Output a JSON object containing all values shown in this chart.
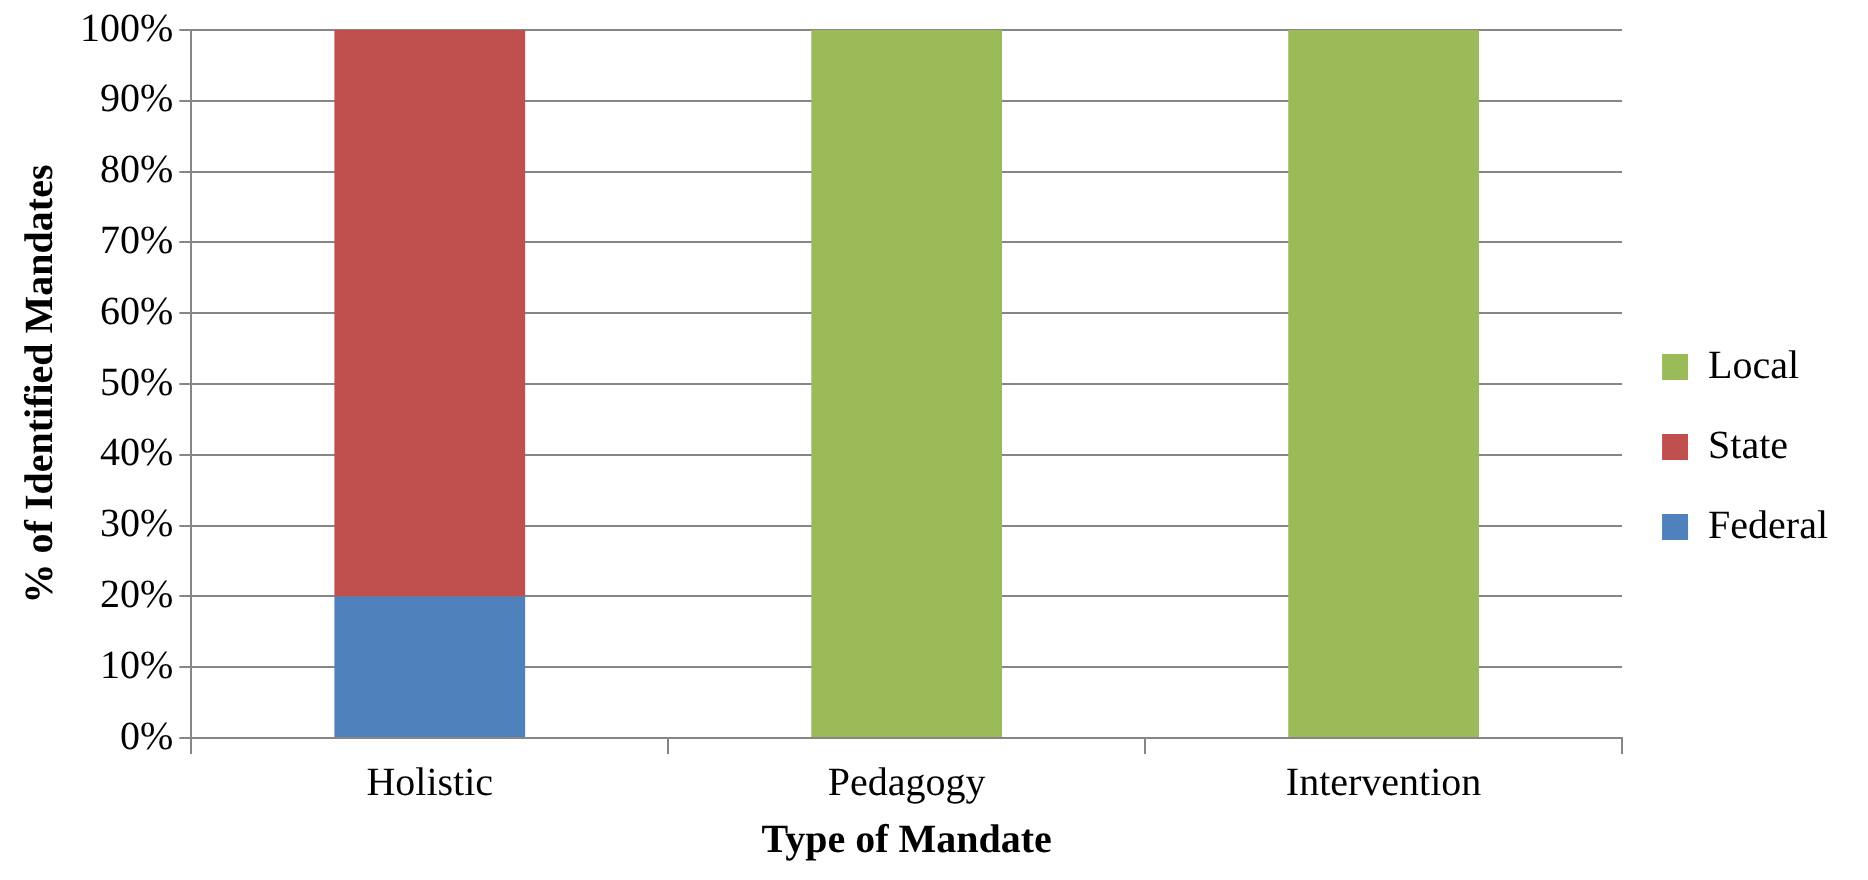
{
  "chart_data": {
    "type": "bar",
    "stacked": true,
    "xlabel": "Type of Mandate",
    "ylabel": "% of Identified Mandates",
    "categories": [
      "Holistic",
      "Pedagogy",
      "Intervention"
    ],
    "series": [
      {
        "name": "Federal",
        "color": "#4f81bd",
        "values": [
          20,
          0,
          0
        ]
      },
      {
        "name": "State",
        "color": "#c0504d",
        "values": [
          80,
          0,
          0
        ]
      },
      {
        "name": "Local",
        "color": "#9bbb59",
        "values": [
          0,
          100,
          100
        ]
      }
    ],
    "ylim": [
      0,
      100
    ],
    "yticks": [
      {
        "value": 0,
        "label": "0%"
      },
      {
        "value": 10,
        "label": "10%"
      },
      {
        "value": 20,
        "label": "20%"
      },
      {
        "value": 30,
        "label": "30%"
      },
      {
        "value": 40,
        "label": "40%"
      },
      {
        "value": 50,
        "label": "50%"
      },
      {
        "value": 60,
        "label": "60%"
      },
      {
        "value": 70,
        "label": "70%"
      },
      {
        "value": 80,
        "label": "80%"
      },
      {
        "value": 90,
        "label": "90%"
      },
      {
        "value": 100,
        "label": "100%"
      }
    ],
    "grid": "y",
    "legend": "right"
  }
}
